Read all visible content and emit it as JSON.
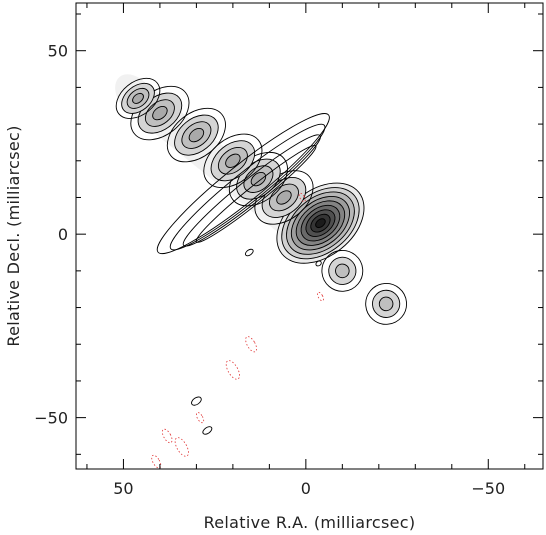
{
  "chart_data": {
    "type": "contour",
    "title": "",
    "xlabel": "Relative R.A. (milliarcsec)",
    "ylabel": "Relative Decl. (milliarcsec)",
    "xlim": [
      63,
      -65
    ],
    "ylim": [
      -64,
      63
    ],
    "x_reversed": true,
    "grid": false,
    "xticks": [
      {
        "value": 50,
        "label": "50"
      },
      {
        "value": 0,
        "label": "0"
      },
      {
        "value": -50,
        "label": "−50"
      }
    ],
    "yticks": [
      {
        "value": 50,
        "label": "50"
      },
      {
        "value": 0,
        "label": "0"
      },
      {
        "value": -50,
        "label": "−50"
      }
    ],
    "positive_contour_color": "#000000",
    "negative_contour_color": "#e03030",
    "greyscale": "intensity, black = brightest",
    "components": [
      {
        "name": "core",
        "x": 0,
        "y": 0,
        "size": 3
      },
      {
        "name": "inner-jet",
        "x": -4,
        "y": 3,
        "size": 6
      },
      {
        "name": "jet-knot-1",
        "x": 6,
        "y": 10,
        "size": 4
      },
      {
        "name": "jet-knot-2",
        "x": 13,
        "y": 15,
        "size": 4
      },
      {
        "name": "jet-knot-3",
        "x": 20,
        "y": 20,
        "size": 4
      },
      {
        "name": "jet-knot-4",
        "x": 30,
        "y": 27,
        "size": 4
      },
      {
        "name": "jet-knot-5",
        "x": 40,
        "y": 33,
        "size": 4
      },
      {
        "name": "jet-knot-6",
        "x": 46,
        "y": 37,
        "size": 3
      },
      {
        "name": "counter-blob-1",
        "x": -10,
        "y": -10,
        "size": 4
      },
      {
        "name": "counter-blob-2",
        "x": -22,
        "y": -19,
        "size": 4
      }
    ]
  }
}
